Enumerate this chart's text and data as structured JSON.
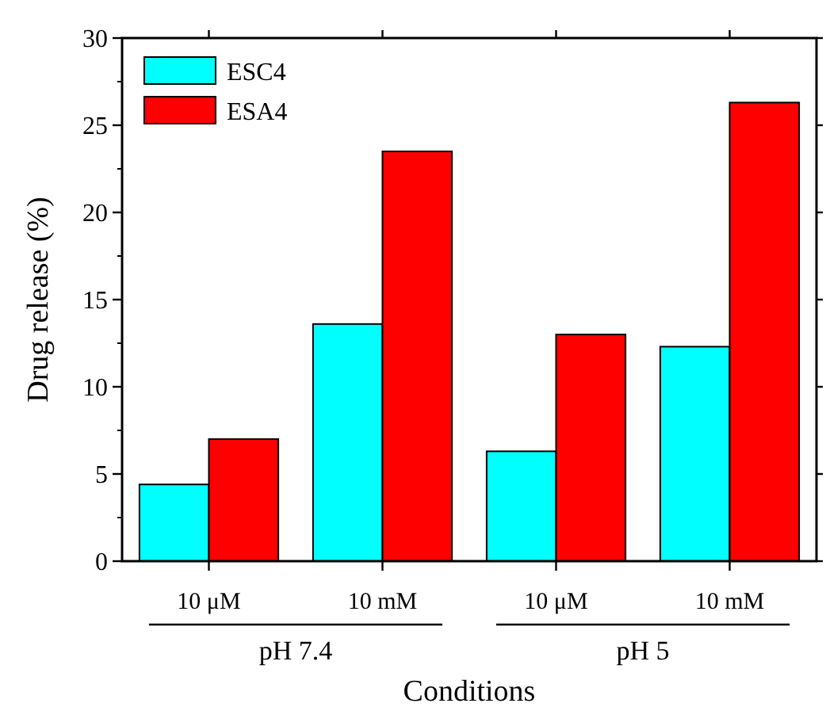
{
  "chart_data": {
    "type": "bar",
    "xlabel": "Conditions",
    "ylabel": "Drug release (%)",
    "categories": [
      "10 μM",
      "10 mM",
      "10 μM",
      "10 mM"
    ],
    "series": [
      {
        "name": "ESC4",
        "color": "#00ffff",
        "values": [
          4.4,
          13.6,
          6.3,
          12.3
        ]
      },
      {
        "name": "ESA4",
        "color": "#ff0000",
        "values": [
          7.0,
          23.5,
          13.0,
          26.3
        ]
      }
    ],
    "ylim": [
      0,
      30
    ],
    "yticks": [
      0,
      5,
      10,
      15,
      20,
      25,
      30
    ],
    "annotations": [
      "pH 7.4",
      "pH 5"
    ],
    "legend": "top left",
    "grid": false
  }
}
